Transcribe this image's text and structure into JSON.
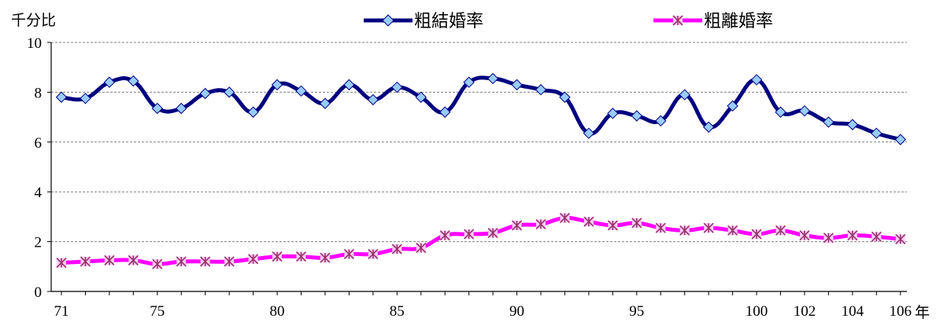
{
  "chart_data": {
    "type": "line",
    "ylabel": "千分比",
    "x_unit": "年",
    "ylim": [
      0,
      10
    ],
    "y_ticks": [
      "0",
      "2",
      "4",
      "6",
      "8",
      "10"
    ],
    "x": [
      71,
      72,
      73,
      74,
      75,
      76,
      77,
      78,
      79,
      80,
      81,
      82,
      83,
      84,
      85,
      86,
      87,
      88,
      89,
      90,
      91,
      92,
      93,
      94,
      95,
      96,
      97,
      98,
      99,
      100,
      101,
      102,
      103,
      104,
      105,
      106
    ],
    "x_tick_labels": [
      {
        "x": 71,
        "label": "71"
      },
      {
        "x": 75,
        "label": "75"
      },
      {
        "x": 80,
        "label": "80"
      },
      {
        "x": 85,
        "label": "85"
      },
      {
        "x": 90,
        "label": "90"
      },
      {
        "x": 95,
        "label": "95"
      },
      {
        "x": 100,
        "label": "100"
      },
      {
        "x": 102,
        "label": "102"
      },
      {
        "x": 104,
        "label": "104"
      },
      {
        "x": 106,
        "label": "106"
      }
    ],
    "grid": "horizontal dashed",
    "legend_position": "top",
    "series": [
      {
        "name": "粗結婚率",
        "color": "#000080",
        "marker_color": "#99ccff",
        "marker": "diamond",
        "values": [
          7.8,
          7.75,
          8.4,
          8.45,
          7.35,
          7.35,
          7.95,
          8.0,
          7.2,
          8.3,
          8.05,
          7.55,
          8.3,
          7.7,
          8.2,
          7.8,
          7.2,
          8.4,
          8.55,
          8.3,
          8.1,
          7.8,
          6.35,
          7.15,
          7.05,
          6.85,
          7.9,
          6.6,
          7.45,
          8.5,
          7.2,
          7.25,
          6.8,
          6.7,
          6.35,
          6.1
        ]
      },
      {
        "name": "粗離婚率",
        "color": "#ff00ff",
        "marker_color": "#993366",
        "marker": "asterisk",
        "values": [
          1.15,
          1.2,
          1.25,
          1.25,
          1.1,
          1.2,
          1.2,
          1.2,
          1.3,
          1.4,
          1.4,
          1.35,
          1.5,
          1.5,
          1.7,
          1.75,
          2.25,
          2.3,
          2.35,
          2.65,
          2.7,
          2.95,
          2.8,
          2.65,
          2.75,
          2.55,
          2.45,
          2.55,
          2.45,
          2.3,
          2.45,
          2.25,
          2.15,
          2.25,
          2.2,
          2.1
        ]
      }
    ]
  }
}
